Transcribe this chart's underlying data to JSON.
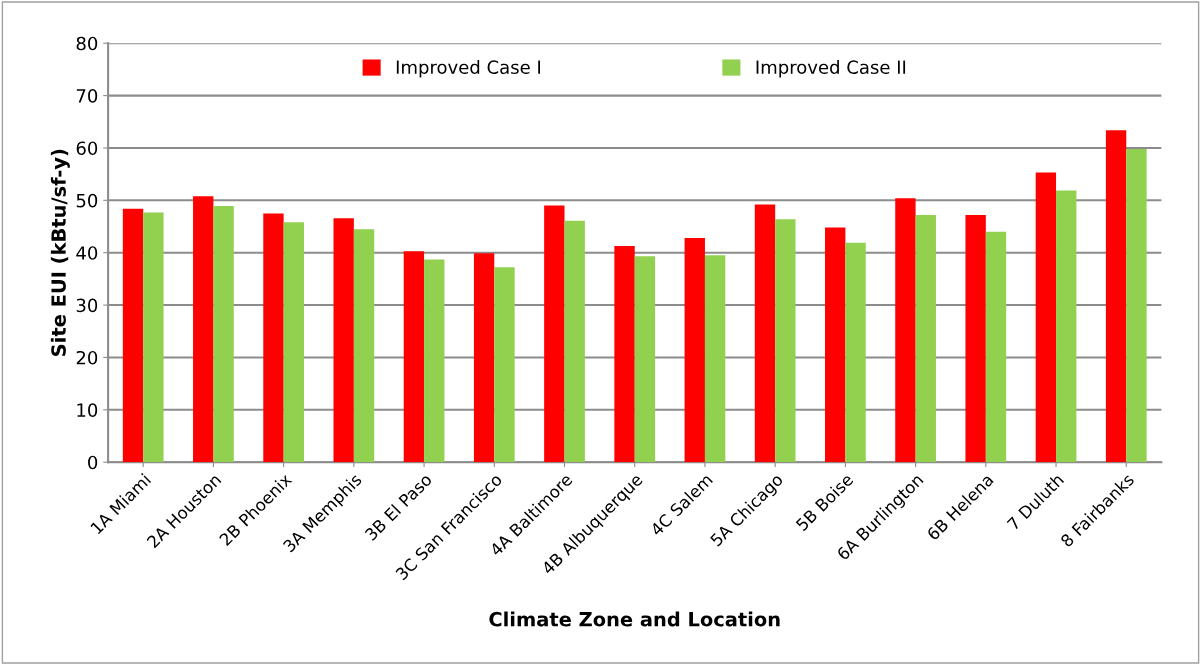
{
  "chart_data": {
    "type": "bar",
    "xlabel": "Climate Zone and Location",
    "ylabel": "Site EUI (kBtu/sf-y)",
    "categories": [
      "1A Miami",
      "2A Houston",
      "2B Phoenix",
      "3A Memphis",
      "3B El Paso",
      "3C San Francisco",
      "4A Baltimore",
      "4B Albuquerque",
      "4C Salem",
      "5A Chicago",
      "5B Boise",
      "6A Burlington",
      "6B Helena",
      "7 Duluth",
      "8 Fairbanks"
    ],
    "series": [
      {
        "name": "Improved Case I",
        "color": "#ff0000",
        "values": [
          48.4,
          50.8,
          47.5,
          46.6,
          40.3,
          39.9,
          49.0,
          41.3,
          42.8,
          49.2,
          44.8,
          50.4,
          47.2,
          55.3,
          63.4
        ]
      },
      {
        "name": "Improved Case II",
        "color": "#92d050",
        "values": [
          47.7,
          48.9,
          45.8,
          44.5,
          38.7,
          37.2,
          46.1,
          39.3,
          39.5,
          46.4,
          41.9,
          47.2,
          44.0,
          51.9,
          59.8
        ]
      }
    ],
    "ylim": [
      0,
      80
    ],
    "yticks": [
      0,
      10,
      20,
      30,
      40,
      50,
      60,
      70,
      80
    ],
    "grid": "y",
    "legend": "top"
  }
}
